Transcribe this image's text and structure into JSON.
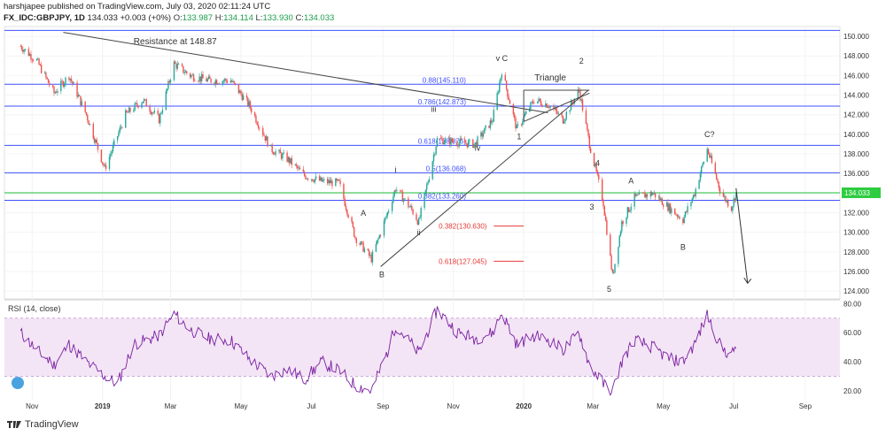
{
  "header": {
    "publisher_line": "harshjapee published on TradingView.com, July 03, 2020 02:11:24 UTC",
    "symbol": "FX_IDC:GBPJPY, 1D",
    "last": "134.033",
    "change": "+0.003 (+0%)",
    "o_label": "O:",
    "o_value": "133.987",
    "h_label": "H:",
    "h_value": "134.114",
    "l_label": "L:",
    "l_value": "133.930",
    "c_label": "C:",
    "c_value": "134.033"
  },
  "footer": {
    "brand": "TradingView"
  },
  "colors": {
    "up": "#26a69a",
    "down": "#ef5350",
    "green_line": "#1fbf3a",
    "fib_blue": "#3f51ff",
    "fib_red": "#e53935",
    "rsi_line": "#7b1fa2",
    "rsi_fill": "#f3e5f5",
    "price_badge": "#2ecc40"
  },
  "chart_data": {
    "type": "candlestick",
    "symbol": "GBPJPY",
    "timeframe": "1D",
    "price_axis": {
      "ticks": [
        "150.000",
        "148.000",
        "146.000",
        "144.000",
        "142.000",
        "140.000",
        "138.000",
        "136.000",
        "134.000",
        "132.000",
        "130.000",
        "128.000",
        "126.000",
        "124.000"
      ],
      "range": [
        123.2,
        151.0
      ],
      "last_price": "134.033"
    },
    "time_axis": {
      "labels": [
        "Nov",
        "2019",
        "Mar",
        "May",
        "Jul",
        "Sep",
        "Nov",
        "2020",
        "Mar",
        "May",
        "Jul",
        "Sep"
      ]
    },
    "price_path": [
      [
        "2018-10-22",
        149.0
      ],
      [
        "2018-11-05",
        147.5
      ],
      [
        "2018-11-20",
        144.2
      ],
      [
        "2018-12-03",
        146.0
      ],
      [
        "2018-12-18",
        142.0
      ],
      [
        "2019-01-03",
        136.5
      ],
      [
        "2019-01-21",
        142.0
      ],
      [
        "2019-02-05",
        143.5
      ],
      [
        "2019-02-19",
        141.5
      ],
      [
        "2019-03-04",
        147.2
      ],
      [
        "2019-03-18",
        146.0
      ],
      [
        "2019-04-03",
        145.5
      ],
      [
        "2019-04-22",
        145.5
      ],
      [
        "2019-05-08",
        143.0
      ],
      [
        "2019-05-27",
        138.5
      ],
      [
        "2019-06-10",
        137.5
      ],
      [
        "2019-06-25",
        135.8
      ],
      [
        "2019-07-10",
        135.2
      ],
      [
        "2019-07-25",
        135.0
      ],
      [
        "2019-08-08",
        129.5
      ],
      [
        "2019-08-22",
        127.3
      ],
      [
        "2019-09-05",
        132.0
      ],
      [
        "2019-09-12",
        134.5
      ],
      [
        "2019-09-26",
        132.3
      ],
      [
        "2019-10-02",
        131.0
      ],
      [
        "2019-10-18",
        139.5
      ],
      [
        "2019-11-05",
        139.2
      ],
      [
        "2019-11-20",
        139.0
      ],
      [
        "2019-12-05",
        141.5
      ],
      [
        "2019-12-13",
        146.5
      ],
      [
        "2019-12-26",
        140.5
      ],
      [
        "2020-01-10",
        143.5
      ],
      [
        "2020-01-23",
        143.0
      ],
      [
        "2020-02-04",
        141.5
      ],
      [
        "2020-02-18",
        144.5
      ],
      [
        "2020-02-27",
        139.0
      ],
      [
        "2020-03-10",
        133.0
      ],
      [
        "2020-03-18",
        125.5
      ],
      [
        "2020-03-26",
        131.0
      ],
      [
        "2020-04-06",
        133.5
      ],
      [
        "2020-04-22",
        134.0
      ],
      [
        "2020-05-06",
        132.5
      ],
      [
        "2020-05-18",
        131.3
      ],
      [
        "2020-05-28",
        134.0
      ],
      [
        "2020-06-08",
        138.5
      ],
      [
        "2020-06-20",
        134.0
      ],
      [
        "2020-06-29",
        132.5
      ],
      [
        "2020-07-03",
        134.03
      ]
    ],
    "rsi": {
      "label": "RSI (14, close)",
      "axis_ticks": [
        "80.00",
        "60.00",
        "40.00",
        "20.00"
      ],
      "range": [
        14,
        82
      ],
      "bands": [
        30,
        70
      ],
      "path": [
        [
          "2018-10-22",
          60
        ],
        [
          "2018-11-05",
          48
        ],
        [
          "2018-11-20",
          38
        ],
        [
          "2018-12-03",
          52
        ],
        [
          "2018-12-18",
          40
        ],
        [
          "2019-01-03",
          30
        ],
        [
          "2019-01-14",
          25
        ],
        [
          "2019-01-28",
          52
        ],
        [
          "2019-02-19",
          58
        ],
        [
          "2019-03-04",
          73
        ],
        [
          "2019-03-18",
          62
        ],
        [
          "2019-04-03",
          56
        ],
        [
          "2019-04-22",
          55
        ],
        [
          "2019-05-08",
          42
        ],
        [
          "2019-05-27",
          30
        ],
        [
          "2019-06-10",
          35
        ],
        [
          "2019-06-25",
          28
        ],
        [
          "2019-07-10",
          40
        ],
        [
          "2019-07-25",
          34
        ],
        [
          "2019-08-08",
          24
        ],
        [
          "2019-08-22",
          20
        ],
        [
          "2019-09-05",
          47
        ],
        [
          "2019-09-12",
          65
        ],
        [
          "2019-09-26",
          52
        ],
        [
          "2019-10-02",
          46
        ],
        [
          "2019-10-18",
          76
        ],
        [
          "2019-11-05",
          60
        ],
        [
          "2019-11-20",
          56
        ],
        [
          "2019-12-05",
          60
        ],
        [
          "2019-12-13",
          74
        ],
        [
          "2019-12-26",
          52
        ],
        [
          "2020-01-10",
          58
        ],
        [
          "2020-01-23",
          55
        ],
        [
          "2020-02-04",
          48
        ],
        [
          "2020-02-18",
          60
        ],
        [
          "2020-02-27",
          38
        ],
        [
          "2020-03-10",
          25
        ],
        [
          "2020-03-18",
          20
        ],
        [
          "2020-03-26",
          40
        ],
        [
          "2020-04-06",
          55
        ],
        [
          "2020-04-22",
          50
        ],
        [
          "2020-05-06",
          42
        ],
        [
          "2020-05-18",
          40
        ],
        [
          "2020-05-28",
          52
        ],
        [
          "2020-06-08",
          72
        ],
        [
          "2020-06-20",
          50
        ],
        [
          "2020-06-29",
          44
        ],
        [
          "2020-07-03",
          52
        ]
      ]
    },
    "horizontal_levels": [
      {
        "price": 150.6,
        "color": "blue",
        "label": ""
      },
      {
        "price": 145.11,
        "color": "blue",
        "label": "0.88(145.110)"
      },
      {
        "price": 142.873,
        "color": "blue",
        "label": "0.786(142.873)"
      },
      {
        "price": 138.876,
        "color": "blue",
        "label": "0.618(138.876)"
      },
      {
        "price": 136.068,
        "color": "blue",
        "label": "0.5(136.068)"
      },
      {
        "price": 133.26,
        "color": "blue",
        "label": "0.382(133.260)"
      },
      {
        "price": 134.033,
        "color": "green",
        "label": ""
      }
    ],
    "red_fib_labels": [
      {
        "price": 130.63,
        "label": "0.382(130.630)"
      },
      {
        "price": 127.045,
        "label": "0.618(127.045)"
      }
    ],
    "trendlines": [
      {
        "name": "resistance",
        "from": [
          "2018-11-28",
          150.4
        ],
        "to": [
          "2020-01-22",
          142.2
        ]
      },
      {
        "name": "support",
        "from": [
          "2019-08-30",
          126.5
        ],
        "to": [
          "2020-02-26",
          144.5
        ]
      }
    ],
    "triangle": {
      "label": "Triangle",
      "upper": [
        [
          "2020-01-01",
          144.5
        ],
        [
          "2020-02-27",
          144.5
        ]
      ],
      "lower": [
        [
          "2020-01-01",
          141.3
        ],
        [
          "2020-02-27",
          144.2
        ]
      ]
    },
    "projection_arrow": {
      "from": [
        "2020-07-03",
        134.5
      ],
      "to": [
        "2020-07-13",
        124.8
      ]
    },
    "annotations": [
      {
        "text": "Resistance at 148.87",
        "date": "2019-03-05",
        "price": 149.2
      },
      {
        "text": "v C",
        "date": "2019-12-13",
        "price": 147.5
      },
      {
        "text": "Triangle",
        "date": "2020-01-24",
        "price": 145.5
      },
      {
        "text": "2",
        "date": "2020-02-20",
        "price": 147.2
      },
      {
        "text": "1",
        "date": "2019-12-28",
        "price": 139.5
      },
      {
        "text": "iii",
        "date": "2019-10-15",
        "price": 142.3
      },
      {
        "text": "iv",
        "date": "2019-11-22",
        "price": 138.3
      },
      {
        "text": "i",
        "date": "2019-09-12",
        "price": 136.1
      },
      {
        "text": "ii",
        "date": "2019-10-02",
        "price": 129.7
      },
      {
        "text": "A",
        "date": "2019-08-15",
        "price": 131.7
      },
      {
        "text": "B",
        "date": "2019-08-31",
        "price": 125.4
      },
      {
        "text": "4",
        "date": "2020-03-05",
        "price": 136.8
      },
      {
        "text": "3",
        "date": "2020-02-29",
        "price": 132.3
      },
      {
        "text": "5",
        "date": "2020-03-15",
        "price": 123.9
      },
      {
        "text": "A",
        "date": "2020-04-03",
        "price": 135.0
      },
      {
        "text": "B",
        "date": "2020-05-18",
        "price": 128.2
      },
      {
        "text": "C?",
        "date": "2020-06-10",
        "price": 139.7
      }
    ]
  }
}
